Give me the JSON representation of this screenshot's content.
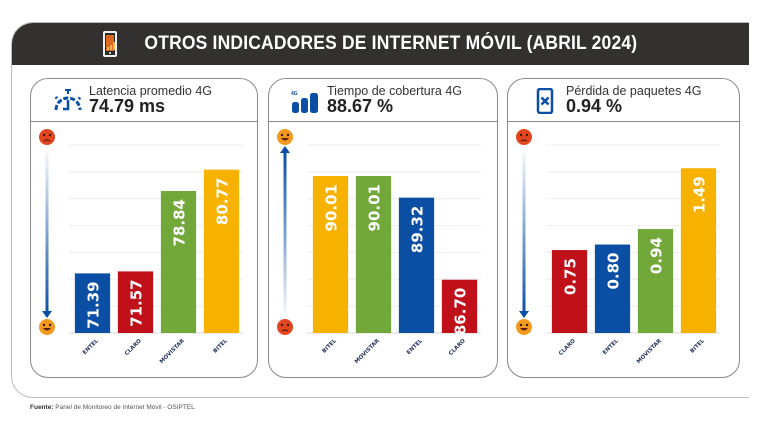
{
  "header": {
    "title": "OTROS INDICADORES DE INTERNET MÓVIL (ABRIL 2024)",
    "icon": "phone-chart-icon"
  },
  "source": {
    "label": "Fuente:",
    "text": "Panel de Monitoreo de Internet Móvil - OSIPTEL"
  },
  "colors": {
    "entel": "#0b4fa5",
    "claro": "#c0101a",
    "movistar": "#72a73a",
    "bitel": "#f7b200",
    "header_bg": "#333030",
    "arrow": "#0b4fa5"
  },
  "chart_data": [
    {
      "type": "bar",
      "title": "Latencia promedio 4G",
      "headline_value": "74.79 ms",
      "icon": "speedometer-icon",
      "categories": [
        "ENTEL",
        "CLARO",
        "MOVISTAR",
        "BITEL"
      ],
      "values": [
        71.39,
        71.57,
        78.84,
        80.77
      ],
      "labels": [
        "71.39",
        "71.57",
        "78.84",
        "80.77"
      ],
      "bar_colors": [
        "#0b4fa5",
        "#c0101a",
        "#72a73a",
        "#f7b200"
      ],
      "ylim": [
        66,
        83
      ],
      "grid": true,
      "scale_indicator": {
        "top": "angry-face",
        "bottom": "happy-face",
        "arrow": "down"
      },
      "xlabel": "",
      "ylabel": ""
    },
    {
      "type": "bar",
      "title": "Tiempo de cobertura 4G",
      "headline_value": "88.67 %",
      "icon": "signal-bars-4g-icon",
      "categories": [
        "BITEL",
        "MOVISTAR",
        "ENTEL",
        "CLARO"
      ],
      "values": [
        90.01,
        90.01,
        89.32,
        86.7
      ],
      "labels": [
        "90.01",
        "90.01",
        "89.32",
        "86.70"
      ],
      "bar_colors": [
        "#f7b200",
        "#72a73a",
        "#0b4fa5",
        "#c0101a"
      ],
      "ylim": [
        85.0,
        91.0
      ],
      "grid": true,
      "scale_indicator": {
        "top": "happy-face",
        "bottom": "angry-face",
        "arrow": "up"
      },
      "xlabel": "",
      "ylabel": ""
    },
    {
      "type": "bar",
      "title": "Pérdida de paquetes 4G",
      "headline_value": "0.94 %",
      "icon": "phone-x-icon",
      "categories": [
        "CLARO",
        "ENTEL",
        "MOVISTAR",
        "BITEL"
      ],
      "values": [
        0.75,
        0.8,
        0.94,
        1.49
      ],
      "labels": [
        "0.75",
        "0.80",
        "0.94",
        "1.49"
      ],
      "bar_colors": [
        "#c0101a",
        "#0b4fa5",
        "#72a73a",
        "#f7b200"
      ],
      "ylim": [
        0,
        1.7
      ],
      "grid": true,
      "scale_indicator": {
        "top": "angry-face",
        "bottom": "happy-face",
        "arrow": "down"
      },
      "xlabel": "",
      "ylabel": ""
    }
  ]
}
